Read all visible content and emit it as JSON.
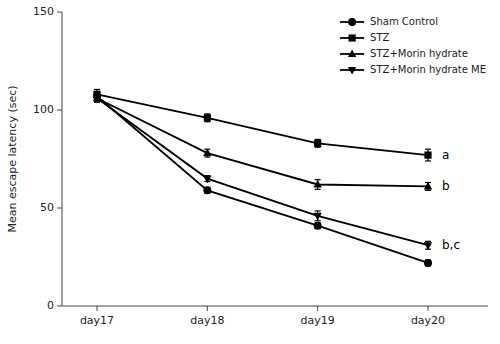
{
  "chart_data": {
    "type": "line",
    "categories": [
      "day17",
      "day18",
      "day19",
      "day20"
    ],
    "series": [
      {
        "name": "Sham Control",
        "values": [
          107,
          59,
          41,
          22
        ],
        "errors": [
          2.5,
          1.5,
          1.5,
          1.5
        ],
        "marker": "circle",
        "color": "#000000"
      },
      {
        "name": "STZ",
        "values": [
          108,
          96,
          83,
          77
        ],
        "errors": [
          2.5,
          2.0,
          2.0,
          3.0
        ],
        "marker": "square",
        "color": "#000000"
      },
      {
        "name": "STZ+Morin hydrate",
        "values": [
          106,
          78,
          62,
          61
        ],
        "errors": [
          2.0,
          2.0,
          2.5,
          2.0
        ],
        "marker": "triangle-up",
        "color": "#000000"
      },
      {
        "name": "STZ+Morin hydrate ME",
        "values": [
          106,
          65,
          46,
          31
        ],
        "errors": [
          2.0,
          1.5,
          2.5,
          2.0
        ],
        "marker": "triangle-down",
        "color": "#000000"
      }
    ],
    "annotations": [
      {
        "text": "a",
        "category": "day20",
        "y": 77
      },
      {
        "text": "b",
        "category": "day20",
        "y": 61
      },
      {
        "text": "b,c",
        "category": "day20",
        "y": 31
      }
    ],
    "ylabel": "Mean escape latency (sec)",
    "ylim": [
      0,
      150
    ],
    "yticks": [
      0,
      50,
      100,
      150
    ],
    "grid": false,
    "legend": "upper right"
  }
}
